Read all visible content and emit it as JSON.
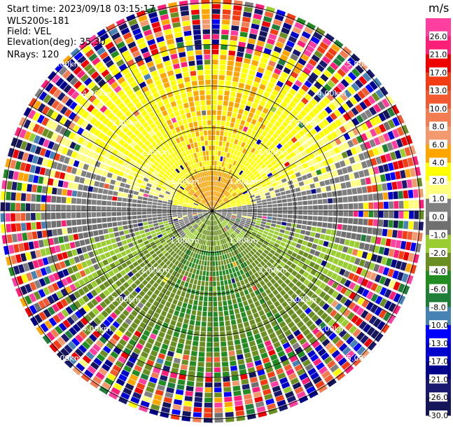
{
  "header": {
    "start_time": "Start time: 2023/09/18 03:15:17",
    "instrument": "WLS200s-181",
    "field": "Field: VEL",
    "elevation": "Elevation(deg): 35.30",
    "nrays": "NRays: 120"
  },
  "chart_data": {
    "type": "heatmap",
    "projection": "polar-ppi",
    "nrays": 120,
    "range_rings_km": [
      1.0,
      2.0,
      3.0,
      4.0,
      5.0
    ],
    "range_labels": [
      "1.00km",
      "2.00km",
      "3.00km",
      "4.00km",
      "5.00km"
    ],
    "max_range_km": 5.1,
    "colorbar": {
      "title": "m/s",
      "ticks": [
        "26.0",
        "21.0",
        "17.0",
        "13.0",
        "10.0",
        "8.0",
        "6.0",
        "4.0",
        "2.0",
        "1.0",
        "0.0",
        "-1.0",
        "-2.0",
        "-4.0",
        "-6.0",
        "-8.0",
        "-10.0",
        "-13.0",
        "-17.0",
        "-21.0",
        "-26.0",
        "-30.0"
      ],
      "levels": [
        30,
        26,
        21,
        17,
        13,
        10,
        8,
        6,
        4,
        2,
        1,
        0,
        -1,
        -2,
        -4,
        -6,
        -8,
        -10,
        -13,
        -17,
        -21,
        -26,
        -30
      ],
      "colors": [
        "#ff3fa0",
        "#ff1e78",
        "#ee0000",
        "#f23c14",
        "#f25a32",
        "#f27d52",
        "#f29a6e",
        "#ffa500",
        "#ffff00",
        "#ffff7f",
        "#808080",
        "#707070",
        "#9acd32",
        "#6b8e23",
        "#228b22",
        "#1f7f3a",
        "#4682b4",
        "#0000ff",
        "#0000cd",
        "#00008b",
        "#191970",
        "#15155a"
      ]
    },
    "velocity_model": {
      "radial_wind_ms": -4.0,
      "wind_direction_deg": 0,
      "noise_start_km": 3.2,
      "noise_full_km": 4.6
    }
  }
}
